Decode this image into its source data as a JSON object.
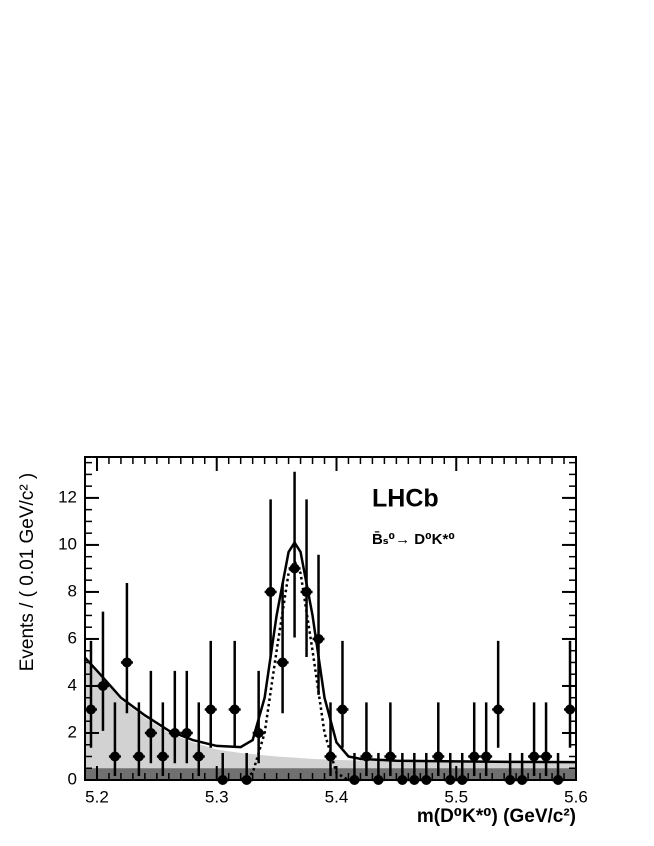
{
  "chart_data": {
    "type": "errorbar",
    "x_label": "m(D⁰K*⁰) (GeV/c²)",
    "y_label": "Events / ( 0.01 GeV/c² )",
    "annotations": [
      "LHCb",
      "B̄ₛ⁰→ D⁰K*⁰"
    ],
    "xlim": [
      5.19,
      5.6
    ],
    "ylim": [
      0,
      13.74
    ],
    "xticks": [
      5.2,
      5.3,
      5.4,
      5.5,
      5.6
    ],
    "yticks": [
      0,
      2,
      4,
      6,
      8,
      10,
      12
    ],
    "color": "#000000",
    "x": [
      5.195,
      5.205,
      5.215,
      5.225,
      5.235,
      5.245,
      5.255,
      5.265,
      5.275,
      5.285,
      5.295,
      5.305,
      5.315,
      5.325,
      5.335,
      5.345,
      5.355,
      5.365,
      5.375,
      5.385,
      5.395,
      5.405,
      5.415,
      5.425,
      5.435,
      5.445,
      5.455,
      5.465,
      5.475,
      5.485,
      5.495,
      5.505,
      5.515,
      5.525,
      5.535,
      5.545,
      5.555,
      5.565,
      5.575,
      5.585,
      5.595
    ],
    "values": [
      3,
      4,
      1,
      5,
      1,
      2,
      1,
      2,
      2,
      1,
      3,
      0,
      3,
      0,
      2,
      8,
      5,
      9,
      8,
      6,
      1,
      3,
      0,
      1,
      0,
      1,
      0,
      0,
      0,
      1,
      0,
      0,
      1,
      1,
      3,
      0,
      0,
      1,
      1,
      0,
      3
    ],
    "errors_low": [
      1.63,
      1.91,
      0.83,
      2.16,
      0.83,
      1.29,
      0.83,
      1.29,
      1.29,
      0.83,
      1.63,
      0,
      1.63,
      0,
      1.29,
      2.77,
      2.16,
      2.94,
      2.77,
      2.38,
      0.83,
      1.63,
      0,
      0.83,
      0,
      0.83,
      0,
      0,
      0,
      0.83,
      0,
      0,
      0.83,
      0.83,
      1.63,
      0,
      0,
      0.83,
      0.83,
      0,
      1.63
    ],
    "errors_high": [
      2.92,
      3.16,
      2.3,
      3.38,
      2.3,
      2.64,
      2.3,
      2.64,
      2.64,
      2.3,
      2.92,
      1.15,
      2.92,
      1.15,
      2.64,
      3.94,
      3.38,
      4.11,
      3.94,
      3.58,
      2.3,
      2.92,
      1.15,
      2.3,
      1.15,
      2.3,
      1.15,
      1.15,
      1.15,
      2.3,
      1.15,
      1.15,
      2.3,
      2.3,
      2.92,
      1.15,
      1.15,
      2.3,
      2.3,
      1.15,
      2.92
    ],
    "curve_x": [
      5.19,
      5.2,
      5.22,
      5.24,
      5.26,
      5.28,
      5.3,
      5.32,
      5.33,
      5.34,
      5.35,
      5.36,
      5.365,
      5.37,
      5.38,
      5.39,
      5.4,
      5.41,
      5.42,
      5.45,
      5.5,
      5.55,
      5.6
    ],
    "curves": [
      {
        "style": "area",
        "color": "#d2d2d2",
        "values": [
          5.1,
          4.6,
          3.4,
          2.65,
          2.0,
          1.6,
          1.3,
          1.15,
          1.1,
          1.05,
          1.0,
          0.97,
          0.95,
          0.93,
          0.9,
          0.88,
          0.85,
          0.84,
          0.83,
          0.8,
          0.77,
          0.76,
          0.75
        ]
      },
      {
        "style": "area",
        "color": "#707070",
        "values": [
          0.5,
          0.5,
          0.5,
          0.5,
          0.5,
          0.5,
          0.5,
          0.5,
          0.5,
          0.5,
          0.5,
          0.5,
          0.5,
          0.5,
          0.5,
          0.5,
          0.5,
          0.5,
          0.5,
          0.5,
          0.5,
          0.5,
          0.5
        ]
      },
      {
        "style": "solid",
        "color": "#000000",
        "values": [
          5.2,
          4.65,
          3.5,
          2.75,
          2.1,
          1.7,
          1.45,
          1.4,
          1.7,
          3.5,
          7.0,
          9.7,
          10.1,
          9.7,
          7.0,
          3.5,
          1.6,
          1.0,
          0.9,
          0.82,
          0.79,
          0.77,
          0.76
        ]
      },
      {
        "style": "dotted",
        "color": "#000000",
        "values": [
          null,
          null,
          null,
          null,
          null,
          null,
          null,
          0,
          0.3,
          2.0,
          5.5,
          8.8,
          9.3,
          8.8,
          5.5,
          2.0,
          0.3,
          0,
          null,
          null,
          null,
          null,
          null
        ]
      }
    ]
  }
}
